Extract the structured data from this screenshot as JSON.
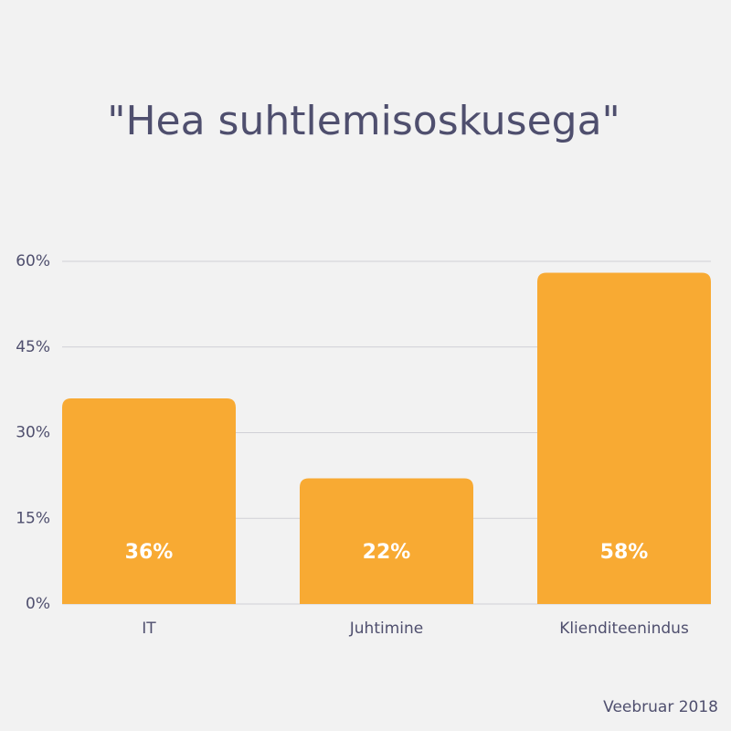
{
  "chart_data": {
    "type": "bar",
    "title": "\"Hea suhtlemisoskusega\"",
    "categories": [
      "IT",
      "Juhtimine",
      "Klienditeenindus"
    ],
    "values": [
      36,
      22,
      58
    ],
    "value_labels": [
      "36%",
      "22%",
      "58%"
    ],
    "color": "#f8aa33",
    "ylim": [
      0,
      60
    ],
    "yticks": [
      {
        "value": 0,
        "label": "0%"
      },
      {
        "value": 15,
        "label": "15%"
      },
      {
        "value": 30,
        "label": "30%"
      },
      {
        "value": 45,
        "label": "45%"
      },
      {
        "value": 60,
        "label": "60%"
      }
    ],
    "grid": true,
    "footnote": "Veebruar 2018"
  }
}
